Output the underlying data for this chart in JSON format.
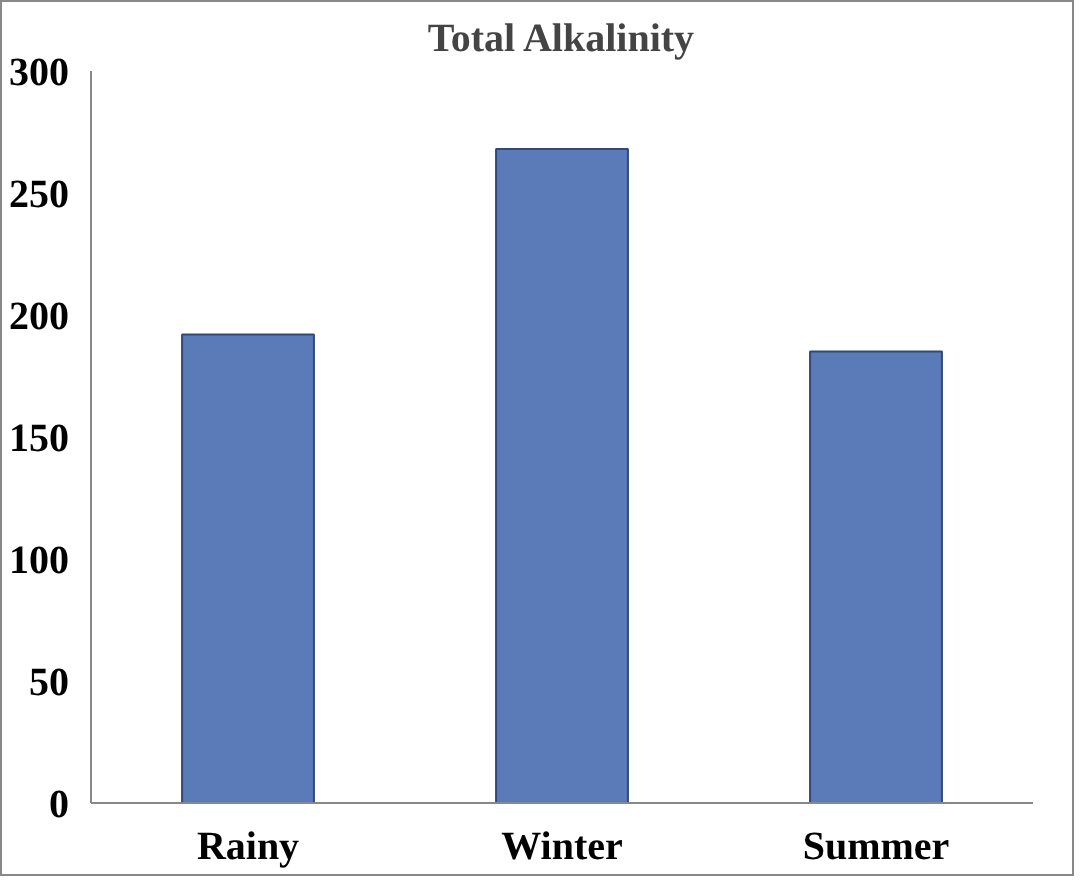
{
  "chart_data": {
    "type": "bar",
    "title": "Total Alkalinity",
    "categories": [
      "Rainy",
      "Winter",
      "Summer"
    ],
    "values": [
      192,
      268,
      185
    ],
    "color": "#5b7bb8",
    "ylim": [
      0,
      300
    ],
    "yticks": [
      0,
      50,
      100,
      150,
      200,
      250,
      300
    ],
    "grid": false
  }
}
